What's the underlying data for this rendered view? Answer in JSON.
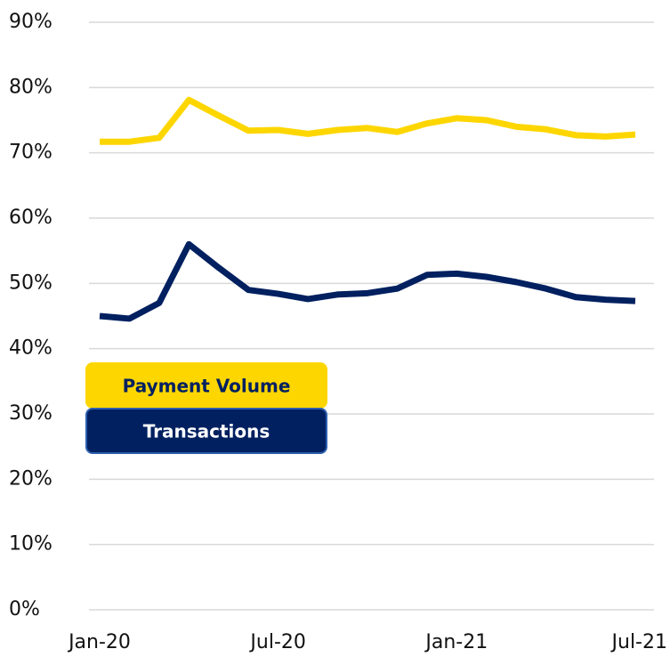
{
  "chart_data": {
    "type": "line",
    "categories": [
      "Jan-20",
      null,
      null,
      null,
      null,
      null,
      "Jul-20",
      null,
      null,
      null,
      null,
      null,
      "Jan-21",
      null,
      null,
      null,
      null,
      null,
      "Jul-21"
    ],
    "series": [
      {
        "name": "Payment Volume",
        "color": "#fdd600",
        "values": [
          71.7,
          71.7,
          72.3,
          78.1,
          75.7,
          73.4,
          73.5,
          72.9,
          73.5,
          73.8,
          73.2,
          74.5,
          75.3,
          75.0,
          74.0,
          73.6,
          72.7,
          72.5,
          72.8
        ]
      },
      {
        "name": "Transactions",
        "color": "#002060",
        "values": [
          45.0,
          44.6,
          47.0,
          56.0,
          52.4,
          49.0,
          48.4,
          47.6,
          48.3,
          48.5,
          49.2,
          51.3,
          51.5,
          51.0,
          50.2,
          49.2,
          47.9,
          47.5,
          47.3
        ]
      }
    ],
    "ylim": [
      0,
      90
    ],
    "yticks": [
      {
        "value": 0,
        "label": "0%"
      },
      {
        "value": 10,
        "label": "10%"
      },
      {
        "value": 20,
        "label": "20%"
      },
      {
        "value": 30,
        "label": "30%"
      },
      {
        "value": 40,
        "label": "40%"
      },
      {
        "value": 50,
        "label": "50%"
      },
      {
        "value": 60,
        "label": "60%"
      },
      {
        "value": 70,
        "label": "70%"
      },
      {
        "value": 80,
        "label": "80%"
      },
      {
        "value": 90,
        "label": "90%"
      }
    ],
    "grid": true
  }
}
